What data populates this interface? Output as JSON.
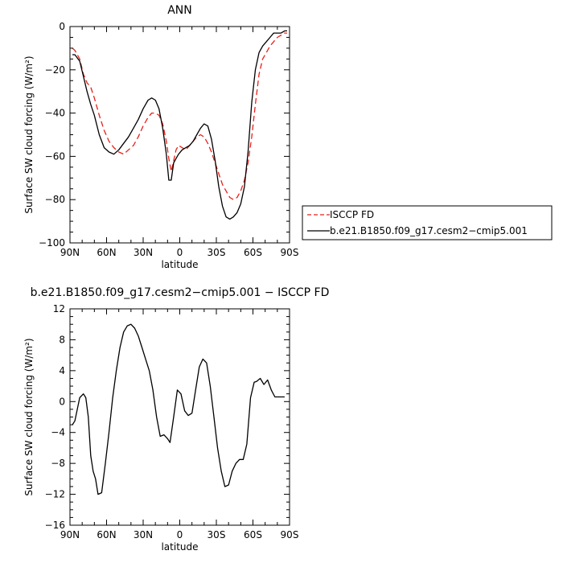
{
  "chart_data": [
    {
      "type": "line",
      "title": "ANN",
      "xlabel": "latitude",
      "ylabel": "Surface SW cloud forcing (W/m²)",
      "xlim": [
        90,
        -90
      ],
      "ylim": [
        -100,
        0
      ],
      "x_ticks": [
        90,
        60,
        30,
        0,
        -30,
        -60,
        -90
      ],
      "x_tick_labels": [
        "90N",
        "60N",
        "30N",
        "0",
        "30S",
        "60S",
        "90S"
      ],
      "y_ticks": [
        -100,
        -80,
        -60,
        -40,
        -20,
        0
      ],
      "y_tick_labels": [
        "−100",
        "−80",
        "−60",
        "−40",
        "−20",
        "0"
      ],
      "legend_position": "right",
      "series": [
        {
          "name": "ISCCP FD",
          "color": "#e8201a",
          "dash": "dashed",
          "x": [
            88,
            86,
            82,
            79,
            76,
            73,
            70,
            66,
            62,
            58,
            54,
            50,
            46,
            42,
            38,
            34,
            30,
            26,
            23,
            20,
            17,
            14,
            11,
            9,
            7,
            5,
            3,
            1,
            -2,
            -5,
            -8,
            -11,
            -14,
            -17,
            -20,
            -23,
            -26,
            -29,
            -32,
            -35,
            -38,
            -41,
            -44,
            -47,
            -50,
            -53,
            -56,
            -59,
            -62,
            -65,
            -68,
            -71,
            -74,
            -77,
            -80,
            -83,
            -86,
            -88
          ],
          "values": [
            -10,
            -11,
            -15,
            -22,
            -26,
            -28,
            -33,
            -41,
            -48,
            -53,
            -56,
            -58,
            -59,
            -57,
            -55,
            -51,
            -46,
            -42,
            -40,
            -40,
            -41,
            -45,
            -53,
            -61,
            -67,
            -62,
            -57,
            -55,
            -56,
            -57,
            -55,
            -53,
            -51,
            -50,
            -51,
            -54,
            -58,
            -63,
            -68,
            -73,
            -76,
            -79,
            -80,
            -79,
            -76,
            -71,
            -63,
            -51,
            -36,
            -22,
            -15,
            -12,
            -9,
            -7,
            -5,
            -4,
            -3,
            -3
          ]
        },
        {
          "name": "b.e21.B1850.f09_g17.cesm2−cmip5.001",
          "color": "#000000",
          "dash": "solid",
          "x": [
            88,
            86,
            82,
            79,
            76,
            73,
            70,
            66,
            62,
            58,
            54,
            50,
            46,
            42,
            38,
            34,
            30,
            26,
            23,
            20,
            17,
            14,
            11,
            9,
            7,
            5,
            3,
            1,
            -2,
            -5,
            -8,
            -11,
            -14,
            -17,
            -20,
            -23,
            -26,
            -29,
            -32,
            -35,
            -38,
            -41,
            -44,
            -47,
            -50,
            -53,
            -56,
            -59,
            -62,
            -65,
            -68,
            -71,
            -74,
            -77,
            -80,
            -83,
            -86,
            -88
          ],
          "values": [
            -13,
            -13,
            -16,
            -23,
            -30,
            -36,
            -41,
            -50,
            -56,
            -58,
            -59,
            -57,
            -54,
            -51,
            -47,
            -43,
            -38,
            -34,
            -33,
            -34,
            -38,
            -47,
            -59,
            -71,
            -71,
            -63,
            -61,
            -59,
            -57,
            -56,
            -55,
            -53,
            -50,
            -47,
            -45,
            -46,
            -52,
            -62,
            -74,
            -83,
            -88,
            -89,
            -88,
            -86,
            -82,
            -74,
            -58,
            -35,
            -20,
            -12,
            -9,
            -7,
            -5,
            -3,
            -3,
            -3,
            -2,
            -2
          ]
        }
      ]
    },
    {
      "type": "line",
      "title": "b.e21.B1850.f09_g17.cesm2−cmip5.001 − ISCCP FD",
      "xlabel": "latitude",
      "ylabel": "Surface SW cloud forcing (W/m²)",
      "xlim": [
        90,
        -90
      ],
      "ylim": [
        -16,
        12
      ],
      "x_ticks": [
        90,
        60,
        30,
        0,
        -30,
        -60,
        -90
      ],
      "x_tick_labels": [
        "90N",
        "60N",
        "30N",
        "0",
        "30S",
        "60S",
        "90S"
      ],
      "y_ticks": [
        -16,
        -12,
        -8,
        -4,
        0,
        4,
        8,
        12
      ],
      "y_tick_labels": [
        "−16",
        "−12",
        "−8",
        "−4",
        "0",
        "4",
        "8",
        "12"
      ],
      "series": [
        {
          "color": "#000000",
          "dash": "solid",
          "x": [
            88,
            86,
            84,
            82,
            79,
            77,
            75,
            73,
            71,
            69,
            67,
            64,
            61,
            58,
            55,
            52,
            49,
            46,
            43,
            40,
            37,
            34,
            31,
            28,
            25,
            22,
            19,
            16,
            13,
            10,
            8,
            5,
            2,
            -1,
            -4,
            -7,
            -10,
            -13,
            -16,
            -19,
            -22,
            -25,
            -28,
            -31,
            -34,
            -37,
            -40,
            -43,
            -46,
            -49,
            -52,
            -55,
            -58,
            -61,
            -63,
            -66,
            -69,
            -72,
            -75,
            -78,
            -81,
            -84,
            -86
          ],
          "values": [
            -3,
            -2.5,
            -1,
            0.5,
            1,
            0.5,
            -2,
            -7,
            -9,
            -10,
            -12,
            -11.8,
            -8,
            -4,
            0.5,
            4,
            7,
            9,
            9.8,
            10,
            9.5,
            8.5,
            7,
            5.5,
            4,
            1.5,
            -2,
            -4.5,
            -4.3,
            -4.8,
            -5.3,
            -2,
            1.5,
            1,
            -1.2,
            -1.8,
            -1.5,
            1.5,
            4.5,
            5.5,
            5,
            2,
            -2,
            -6,
            -9,
            -11,
            -10.8,
            -9,
            -8,
            -7.5,
            -7.5,
            -5.5,
            0.5,
            2.5,
            2.6,
            3,
            2.2,
            2.8,
            1.5,
            0.6,
            0.6,
            0.6,
            0.6
          ]
        }
      ]
    }
  ]
}
